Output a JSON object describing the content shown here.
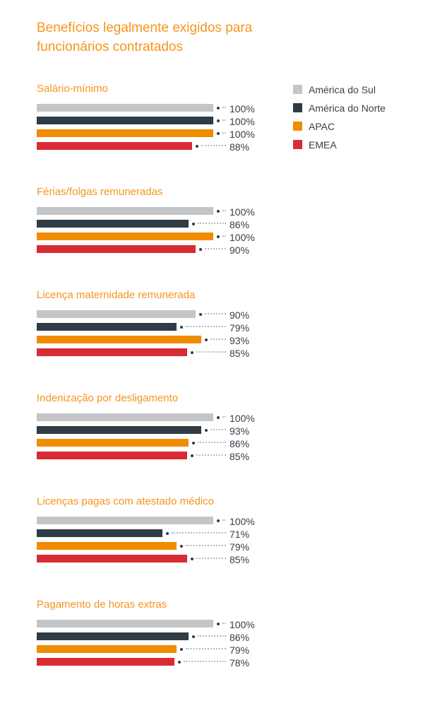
{
  "title": "Benefícios legalmente exigidos para funcionários contratados",
  "colors": {
    "background": "#ffffff",
    "title": "#f7941d",
    "group_heading": "#f7941d",
    "value_label": "#333e48",
    "legend_text": "#37424c",
    "marker_dot": "#2f3b45",
    "leader_dots": "#b7bbbf"
  },
  "legend": {
    "items": [
      {
        "label": "América do Sul",
        "color": "#c3c6c9"
      },
      {
        "label": "América do Norte",
        "color": "#2f3b45"
      },
      {
        "label": "APAC",
        "color": "#f08c00"
      },
      {
        "label": "EMEA",
        "color": "#d92b33"
      }
    ]
  },
  "chart_data": {
    "type": "bar",
    "orientation": "horizontal",
    "title": "Benefícios legalmente exigidos para funcionários contratados",
    "unit": "%",
    "xlim": [
      0,
      100
    ],
    "grid": false,
    "legend_position": "top-right",
    "series_names": [
      "América do Sul",
      "América do Norte",
      "APAC",
      "EMEA"
    ],
    "series_colors": [
      "#c3c6c9",
      "#2f3b45",
      "#f08c00",
      "#d92b33"
    ],
    "groups": [
      {
        "category": "Salário-mínimo",
        "values": [
          100,
          100,
          100,
          88
        ],
        "labels": [
          "100%",
          "100%",
          "100%",
          "88%"
        ]
      },
      {
        "category": "Férias/folgas remuneradas",
        "values": [
          100,
          86,
          100,
          90
        ],
        "labels": [
          "100%",
          "86%",
          "100%",
          "90%"
        ]
      },
      {
        "category": "Licença maternidade remunerada",
        "values": [
          90,
          79,
          93,
          85
        ],
        "labels": [
          "90%",
          "79%",
          "93%",
          "85%"
        ]
      },
      {
        "category": "Indenização por desligamento",
        "values": [
          100,
          93,
          86,
          85
        ],
        "labels": [
          "100%",
          "93%",
          "86%",
          "85%"
        ]
      },
      {
        "category": "Licenças pagas com atestado médico",
        "values": [
          100,
          71,
          79,
          85
        ],
        "labels": [
          "100%",
          "71%",
          "79%",
          "85%"
        ]
      },
      {
        "category": "Pagamento de horas extras",
        "values": [
          100,
          86,
          79,
          78
        ],
        "labels": [
          "100%",
          "86%",
          "79%",
          "78%"
        ]
      }
    ]
  }
}
